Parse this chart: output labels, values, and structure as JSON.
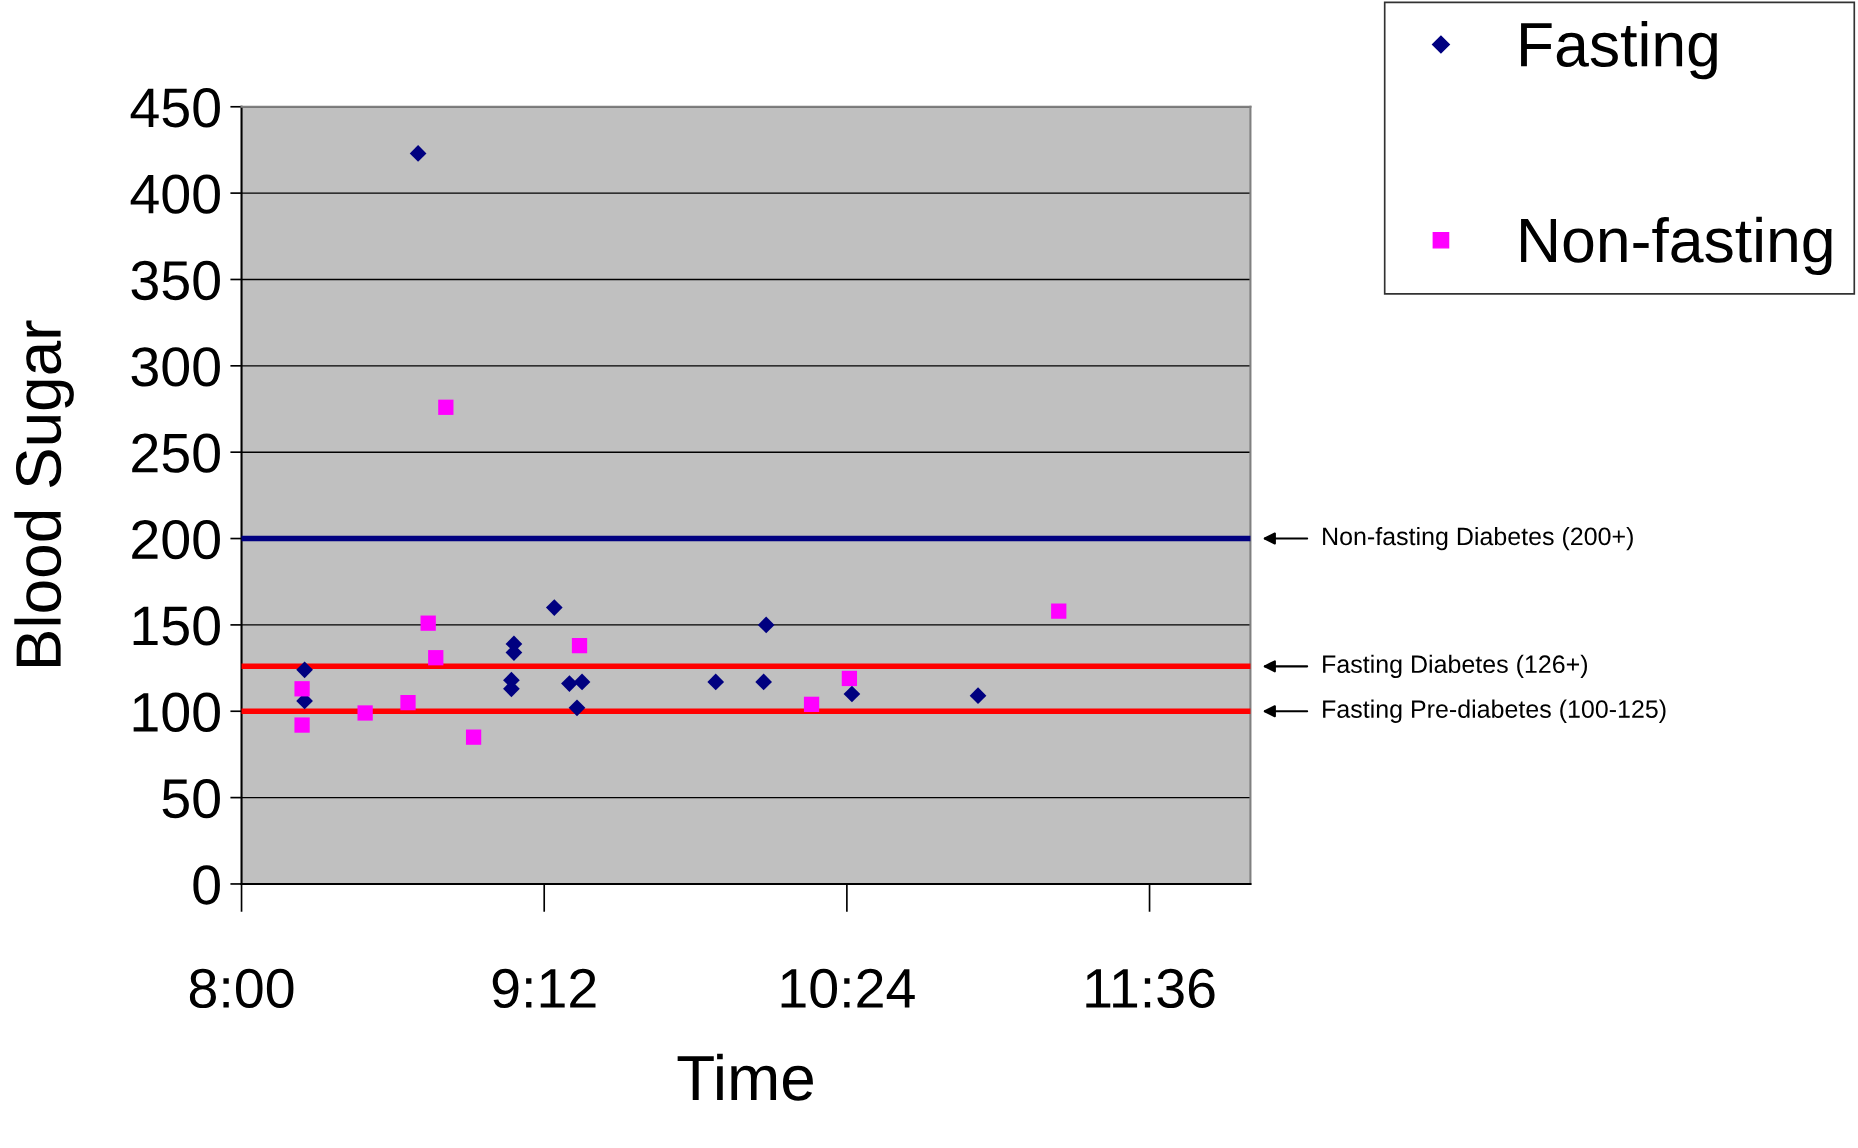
{
  "chart_data": {
    "type": "scatter",
    "xlabel": "Time",
    "ylabel": "Blood Sugar",
    "series": [
      {
        "name": "Fasting",
        "color": "#000080",
        "marker": "diamond",
        "x": [
          8.25,
          8.25,
          8.7,
          9.07,
          9.07,
          9.08,
          9.08,
          9.24,
          9.3,
          9.33,
          9.35,
          9.88,
          10.07,
          10.08,
          10.42,
          10.92
        ],
        "values": [
          124,
          106,
          423,
          118,
          113,
          139,
          134,
          160,
          116,
          102,
          117,
          117,
          117,
          150,
          110,
          109
        ]
      },
      {
        "name": "Non-fasting",
        "color": "#ff00ff",
        "marker": "square",
        "x": [
          8.24,
          8.24,
          8.49,
          8.66,
          8.74,
          8.77,
          8.81,
          8.92,
          9.34,
          10.26,
          10.41,
          11.24
        ],
        "values": [
          113,
          92,
          99,
          105,
          151,
          131,
          276,
          85,
          138,
          104,
          119,
          158
        ]
      }
    ],
    "ref_lines": [
      {
        "axis": "y",
        "value": 200,
        "label": "Non-fasting Diabetes (200+)",
        "color": "#000080"
      },
      {
        "axis": "y",
        "value": 126,
        "label": "Fasting Diabetes (126+)",
        "color": "#ff0000"
      },
      {
        "axis": "y",
        "value": 100,
        "label": "Fasting Pre-diabetes (100-125)",
        "color": "#ff0000"
      }
    ],
    "xlim": [
      8,
      12
    ],
    "xticks": [
      {
        "value": 8,
        "label": "8:00"
      },
      {
        "value": 9.2,
        "label": "9:12"
      },
      {
        "value": 10.4,
        "label": "10:24"
      },
      {
        "value": 11.6,
        "label": "11:36"
      }
    ],
    "ylim": [
      0,
      450
    ],
    "yticks": [
      0,
      50,
      100,
      150,
      200,
      250,
      300,
      350,
      400,
      450
    ],
    "grid": "y",
    "legend": "top right"
  }
}
